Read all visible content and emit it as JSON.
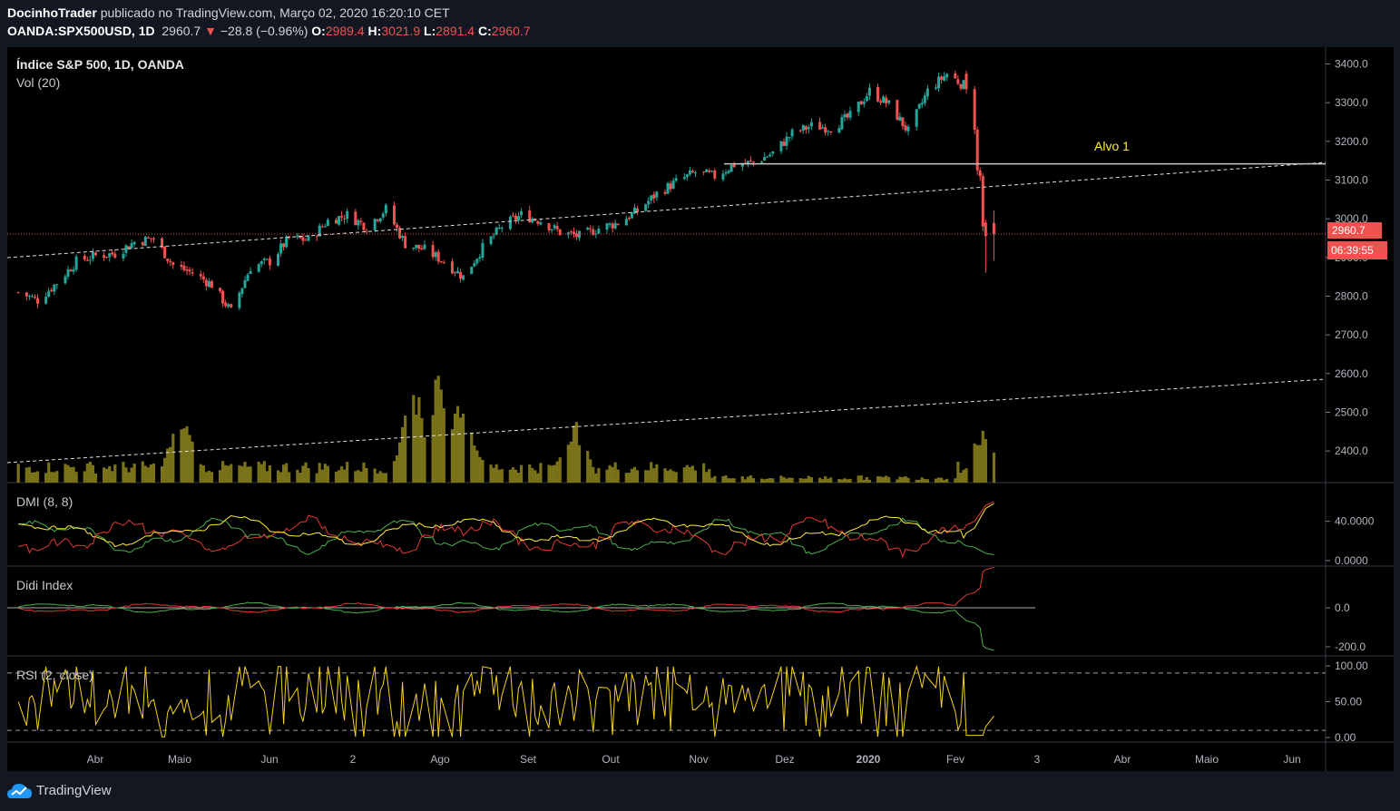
{
  "header": {
    "author": "DocinhoTrader",
    "published_text": "publicado no TradingView.com, Março 02, 2020 16:20:10 CET",
    "symbol": "OANDA:SPX500USD, 1D",
    "last": "2960.7",
    "change": "−28.8 (−0.96%)",
    "o_label": "O:",
    "o_val": "2989.4",
    "h_label": "H:",
    "h_val": "3021.9",
    "l_label": "L:",
    "l_val": "2891.4",
    "c_label": "C:",
    "c_val": "2960.7"
  },
  "panes": {
    "main_title": "Índice S&P 500, 1D, OANDA",
    "vol_title": "Vol (20)",
    "dmi_title": "DMI (8, 8)",
    "didi_title": "Didi Index",
    "rsi_title": "RSI (2, close)"
  },
  "annotation": {
    "alvo": "Alvo 1"
  },
  "price_badge": "2960.7",
  "time_badge": "06:39:55",
  "footer": {
    "brand": "TradingView"
  },
  "colors": {
    "up": "#26a69a",
    "down": "#ef5350",
    "volume": "#7a7219",
    "annotation": "#ffeb3b",
    "rsi": "#f5d21e",
    "dmi_plus": "#4caf50",
    "dmi_minus": "#e53935",
    "adx": "#ffeb3b",
    "badge": "#ef5350"
  },
  "chart_data": [
    {
      "type": "candlestick",
      "title": "Índice S&P 500, 1D, OANDA",
      "y_ticks": [
        "3400.0",
        "3300.0",
        "3200.0",
        "3100.0",
        "3000.0",
        "2900.0",
        "2800.0",
        "2700.0",
        "2600.0",
        "2500.0",
        "2400.0"
      ],
      "ylim": [
        2330,
        3420
      ],
      "x_ticks": [
        "Abr",
        "Maio",
        "Jun",
        "2",
        "Ago",
        "Set",
        "Out",
        "Nov",
        "Dez",
        "2020",
        "Fev",
        "3",
        "Abr",
        "Maio",
        "Jun"
      ],
      "close_path": [
        [
          "2019-03-15",
          2810
        ],
        [
          "2019-03-22",
          2790
        ],
        [
          "2019-03-29",
          2835
        ],
        [
          "2019-04-05",
          2890
        ],
        [
          "2019-04-12",
          2905
        ],
        [
          "2019-04-19",
          2910
        ],
        [
          "2019-04-26",
          2940
        ],
        [
          "2019-05-03",
          2950
        ],
        [
          "2019-05-10",
          2880
        ],
        [
          "2019-05-17",
          2860
        ],
        [
          "2019-05-24",
          2830
        ],
        [
          "2019-05-31",
          2760
        ],
        [
          "2019-06-07",
          2875
        ],
        [
          "2019-06-14",
          2890
        ],
        [
          "2019-06-21",
          2950
        ],
        [
          "2019-06-28",
          2945
        ],
        [
          "2019-07-05",
          2995
        ],
        [
          "2019-07-12",
          3010
        ],
        [
          "2019-07-19",
          2980
        ],
        [
          "2019-07-26",
          3025
        ],
        [
          "2019-08-02",
          2935
        ],
        [
          "2019-08-09",
          2920
        ],
        [
          "2019-08-16",
          2890
        ],
        [
          "2019-08-23",
          2850
        ],
        [
          "2019-08-30",
          2925
        ],
        [
          "2019-09-06",
          2980
        ],
        [
          "2019-09-13",
          3010
        ],
        [
          "2019-09-20",
          2995
        ],
        [
          "2019-09-27",
          2965
        ],
        [
          "2019-10-04",
          2955
        ],
        [
          "2019-10-11",
          2975
        ],
        [
          "2019-10-18",
          2990
        ],
        [
          "2019-10-25",
          3020
        ],
        [
          "2019-11-01",
          3065
        ],
        [
          "2019-11-08",
          3095
        ],
        [
          "2019-11-15",
          3120
        ],
        [
          "2019-11-22",
          3110
        ],
        [
          "2019-11-29",
          3140
        ],
        [
          "2019-12-06",
          3145
        ],
        [
          "2019-12-13",
          3170
        ],
        [
          "2019-12-20",
          3220
        ],
        [
          "2019-12-27",
          3240
        ],
        [
          "2020-01-03",
          3235
        ],
        [
          "2020-01-10",
          3265
        ],
        [
          "2020-01-17",
          3330
        ],
        [
          "2020-01-24",
          3295
        ],
        [
          "2020-01-31",
          3225
        ],
        [
          "2020-02-07",
          3330
        ],
        [
          "2020-02-14",
          3375
        ],
        [
          "2020-02-21",
          3340
        ],
        [
          "2020-02-24",
          3225
        ],
        [
          "2020-02-25",
          3130
        ],
        [
          "2020-02-26",
          3115
        ],
        [
          "2020-02-27",
          2980
        ],
        [
          "2020-02-28",
          2955
        ],
        [
          "2020-03-02",
          2960.7
        ]
      ],
      "horizontal_line": {
        "label": "Alvo 1",
        "value": 3142
      },
      "last_price": 2960.7
    },
    {
      "type": "bar",
      "title": "Vol (20)",
      "note": "Volume pane, peak activity early Aug 2019 and late Feb 2020"
    },
    {
      "type": "line",
      "title": "DMI (8, 8)",
      "y_ticks": [
        "40.0000",
        "0.0000"
      ],
      "series": [
        {
          "name": "+DI"
        },
        {
          "name": "-DI"
        },
        {
          "name": "ADX"
        }
      ]
    },
    {
      "type": "line",
      "title": "Didi Index",
      "y_ticks": [
        "0.0",
        "-200.0"
      ]
    },
    {
      "type": "line",
      "title": "RSI (2, close)",
      "y_ticks": [
        "100.00",
        "50.00",
        "0.00"
      ],
      "bands": [
        90,
        10
      ]
    }
  ]
}
